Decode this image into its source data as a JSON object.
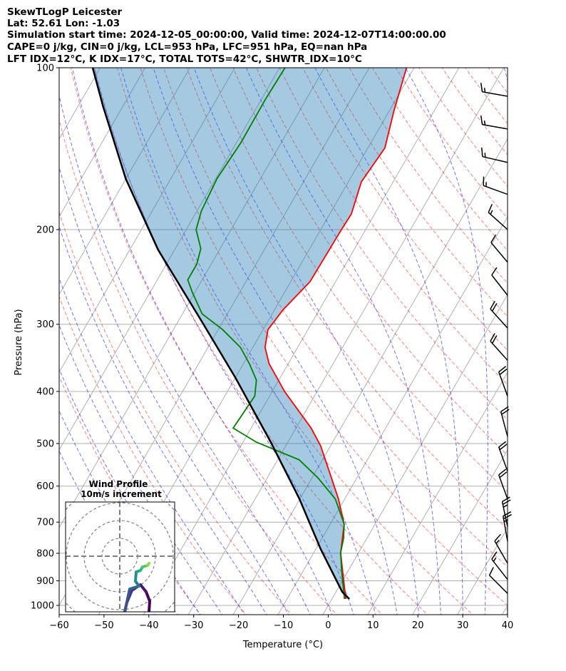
{
  "chart_data": {
    "type": "line",
    "subtype": "skewt-logp",
    "title_lines": [
      "SkewTLogP Leicester",
      "Lat: 52.61   Lon: -1.03",
      "Simulation start time: 2024-12-05_00:00:00, Valid time: 2024-12-07T14:00:00.00",
      "CAPE=0 j/kg, CIN=0 j/kg, LCL=953 hPa, LFC=951 hPa, EQ=nan hPa",
      "LFT IDX=12°C, K IDX=17°C, TOTAL TOTS=42°C, SHWTR_IDX=10°C"
    ],
    "xlabel": "Temperature (°C)",
    "ylabel": "Pressure (hPa)",
    "xlim": [
      -60,
      40
    ],
    "ylim": [
      1040,
      100
    ],
    "xticks": [
      "−60",
      "−50",
      "−40",
      "−30",
      "−20",
      "−10",
      "0",
      "10",
      "20",
      "30",
      "40"
    ],
    "xtick_values": [
      -60,
      -50,
      -40,
      -30,
      -20,
      -10,
      0,
      10,
      20,
      30,
      40
    ],
    "yticks": [
      "100",
      "200",
      "300",
      "400",
      "500",
      "600",
      "700",
      "800",
      "900",
      "1000"
    ],
    "ytick_values": [
      100,
      200,
      300,
      400,
      500,
      600,
      700,
      800,
      900,
      1000
    ],
    "series": [
      {
        "name": "temperature",
        "color": "#ff0000",
        "pressure": [
          973,
          861,
          798,
          706,
          634,
          561,
          505,
          468,
          401,
          355,
          331,
          307,
          282,
          250,
          202,
          187,
          163,
          141,
          120,
          100
        ],
        "temp": [
          3.1,
          -1.3,
          -4.0,
          -6.9,
          -11.4,
          -17.2,
          -22.2,
          -26.6,
          -37.1,
          -44.3,
          -47.3,
          -48.9,
          -48.1,
          -45.7,
          -45.4,
          -45.2,
          -47.1,
          -46.2,
          -49.0,
          -51.7
        ]
      },
      {
        "name": "dewpoint",
        "color": "#008000",
        "pressure": [
          973,
          861,
          798,
          750,
          706,
          634,
          579,
          536,
          497,
          468,
          408,
          381,
          355,
          331,
          307,
          287,
          262,
          248,
          232,
          217,
          200,
          185,
          160.6,
          138,
          114.7,
          100
        ],
        "temp": [
          2.8,
          -1.5,
          -4.0,
          -5.2,
          -6.9,
          -12.1,
          -18.7,
          -25.2,
          -37,
          -44,
          -43.3,
          -45,
          -48.7,
          -52.8,
          -59,
          -65.6,
          -70.5,
          -73.2,
          -73.2,
          -74.3,
          -77.8,
          -79,
          -79.7,
          -79,
          -79.1,
          -78.8
        ]
      },
      {
        "name": "parcel",
        "color": "#000000",
        "pressure": [
          973,
          944,
          786,
          634,
          497,
          377,
          296,
          218,
          161,
          118,
          100
        ],
        "temp": [
          3.9,
          1.4,
          -8.9,
          -20.1,
          -33.8,
          -50,
          -64.8,
          -83.7,
          -100,
          -114.4,
          -121.7
        ]
      }
    ],
    "shading": {
      "between": [
        "parcel",
        "temperature"
      ],
      "color": "#1f77b4",
      "alpha": 0.4
    },
    "wind_barbs": [
      {
        "p": 113,
        "dir": 280,
        "kt": 15
      },
      {
        "p": 130,
        "dir": 280,
        "kt": 15
      },
      {
        "p": 150,
        "dir": 283,
        "kt": 15
      },
      {
        "p": 172,
        "dir": 290,
        "kt": 15
      },
      {
        "p": 200,
        "dir": 312,
        "kt": 15
      },
      {
        "p": 230,
        "dir": 320,
        "kt": 10
      },
      {
        "p": 265,
        "dir": 322,
        "kt": 10
      },
      {
        "p": 305,
        "dir": 318,
        "kt": 20
      },
      {
        "p": 350,
        "dir": 318,
        "kt": 20
      },
      {
        "p": 408,
        "dir": 340,
        "kt": 20
      },
      {
        "p": 485,
        "dir": 345,
        "kt": 20
      },
      {
        "p": 563,
        "dir": 340,
        "kt": 20
      },
      {
        "p": 634,
        "dir": 340,
        "kt": 20
      },
      {
        "p": 714,
        "dir": 348,
        "kt": 25
      },
      {
        "p": 760,
        "dir": 350,
        "kt": 25
      },
      {
        "p": 835,
        "dir": 330,
        "kt": 15
      },
      {
        "p": 895,
        "dir": 322,
        "kt": 15
      },
      {
        "p": 950,
        "dir": 315,
        "kt": 10
      }
    ],
    "hodograph": {
      "title": "Wind Profile",
      "subtitle": "10m/s increment",
      "ring_increment_ms": 10,
      "u": [
        16.4,
        16.8,
        14.8,
        11.6,
        6.8,
        4,
        2.8,
        5.6,
        10.8,
        8.8,
        9.2,
        11.6,
        12.8,
        15.6,
        16.4
      ],
      "v": [
        -31.2,
        -25.2,
        -20,
        -16,
        -19.2,
        -26,
        -31.2,
        -18.4,
        -16.8,
        -14,
        -8.8,
        -8,
        -6,
        -5.2,
        -4
      ],
      "colors": [
        "#440154",
        "#46085c",
        "#471365",
        "#482173",
        "#46327e",
        "#3f4788",
        "#3b528b",
        "#31688e",
        "#2a788e",
        "#21918c",
        "#1fa187",
        "#35b779",
        "#52c569",
        "#8fd744",
        "#c8e020"
      ]
    }
  }
}
